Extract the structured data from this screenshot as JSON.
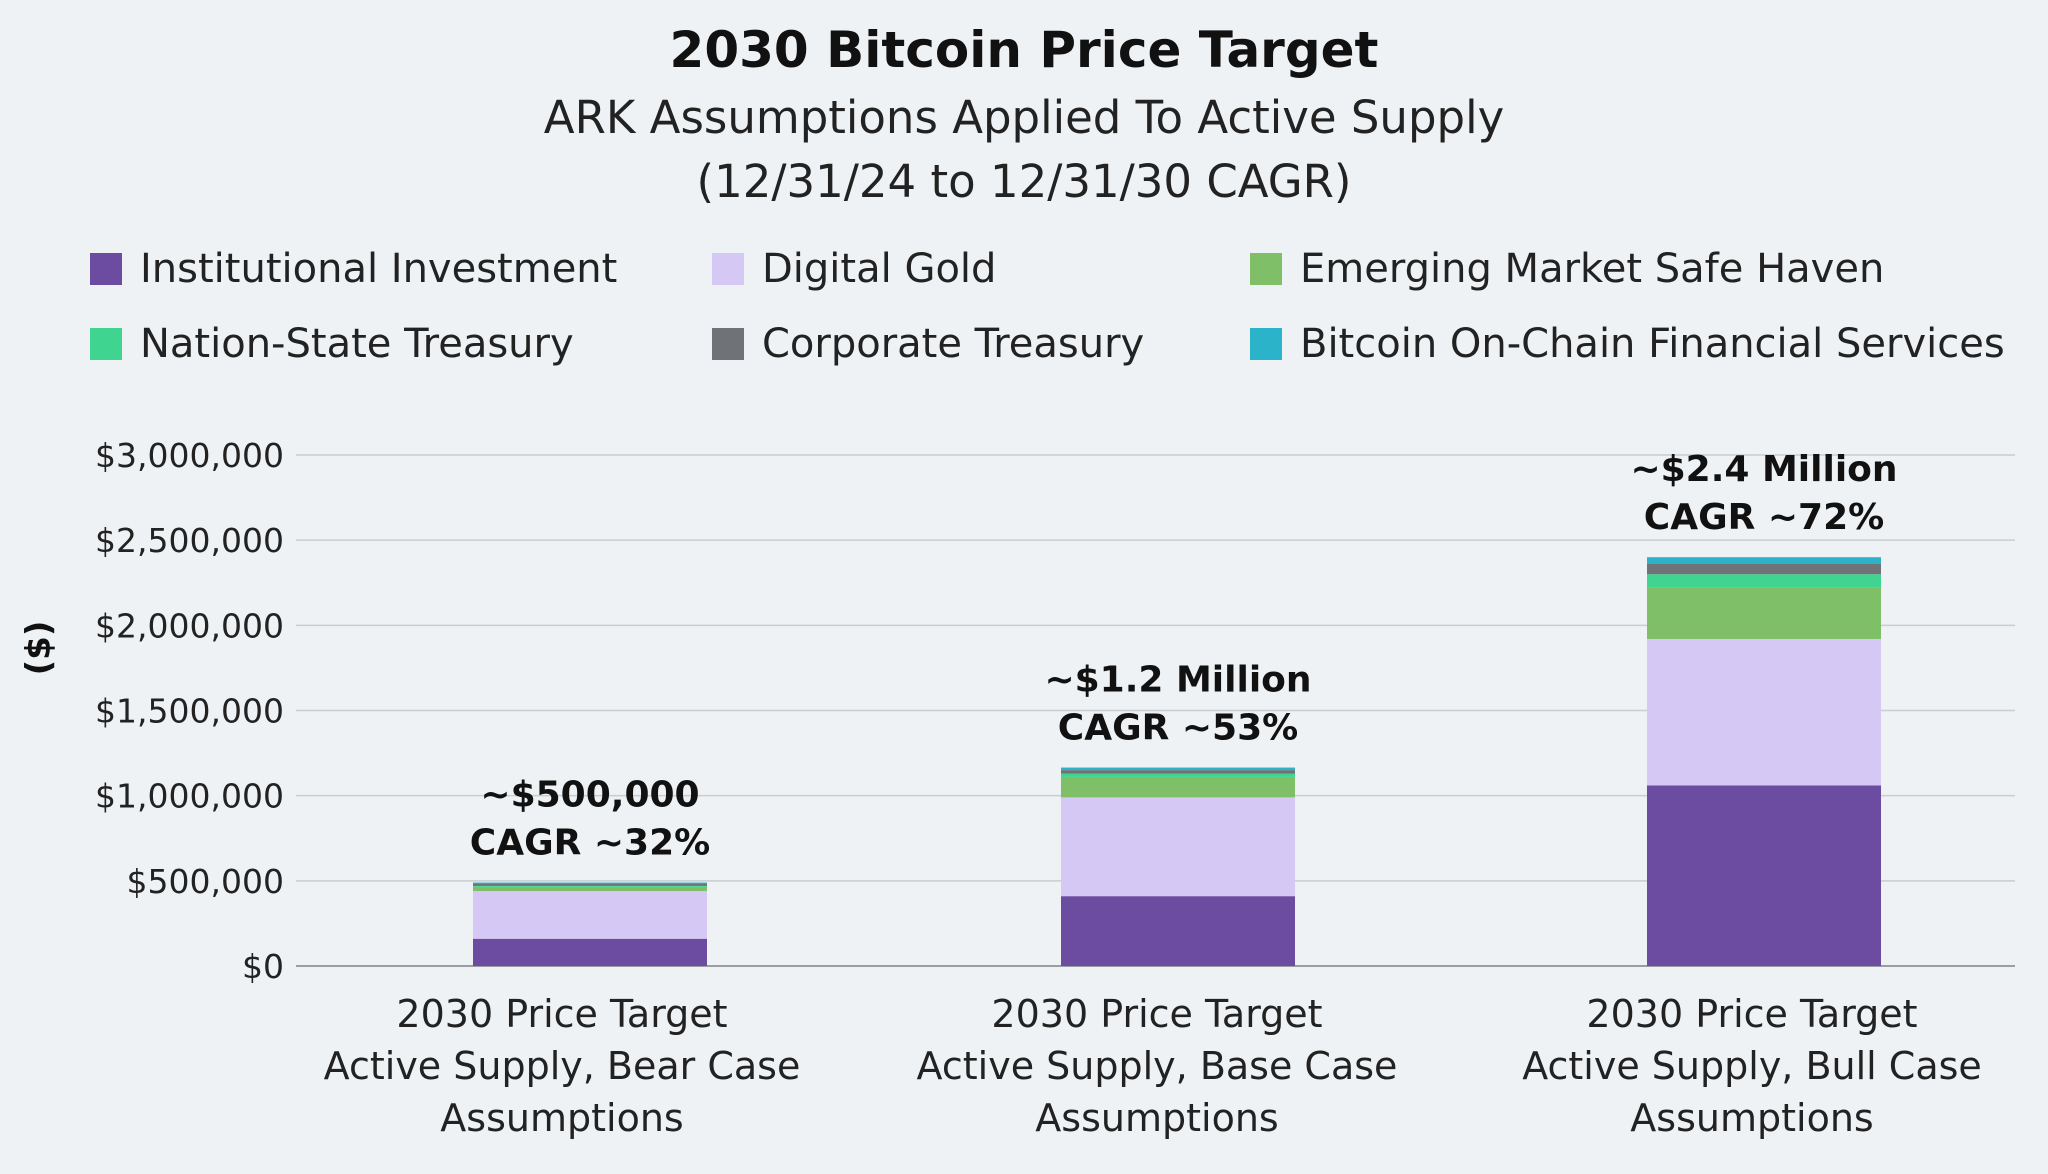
{
  "chart_data": {
    "type": "bar",
    "stacked": true,
    "title": "2030 Bitcoin Price Target",
    "subtitle_lines": [
      "ARK Assumptions Applied To Active Supply",
      "(12/31/24 to 12/31/30 CAGR)"
    ],
    "ylabel": "($)",
    "ylim": [
      0,
      3000000
    ],
    "yticks": [
      0,
      500000,
      1000000,
      1500000,
      2000000,
      2500000,
      3000000
    ],
    "ytick_labels": [
      "$0",
      "$500,000",
      "$1,000,000",
      "$1,500,000",
      "$2,000,000",
      "$2,500,000",
      "$3,000,000"
    ],
    "grid": true,
    "legend_position": "top",
    "categories": [
      [
        "2030 Price Target",
        "Active Supply, Bear Case",
        "Assumptions"
      ],
      [
        "2030 Price Target",
        "Active Supply, Base Case",
        "Assumptions"
      ],
      [
        "2030 Price Target",
        "Active Supply, Bull Case",
        "Assumptions"
      ]
    ],
    "series": [
      {
        "name": "Institutional Investment",
        "color": "#6b4ca0",
        "values": [
          160000,
          410000,
          1060000
        ]
      },
      {
        "name": "Digital Gold",
        "color": "#d6c8f5",
        "values": [
          280000,
          580000,
          860000
        ]
      },
      {
        "name": "Emerging Market Safe Haven",
        "color": "#7fbf67",
        "values": [
          25000,
          120000,
          300000
        ]
      },
      {
        "name": "Nation-State Treasury",
        "color": "#3fd48f",
        "values": [
          5000,
          20000,
          80000
        ]
      },
      {
        "name": "Corporate Treasury",
        "color": "#6f7378",
        "values": [
          15000,
          20000,
          60000
        ]
      },
      {
        "name": "Bitcoin On-Chain Financial Services",
        "color": "#2ab3c9",
        "values": [
          5000,
          15000,
          40000
        ]
      }
    ],
    "annotations": [
      [
        "~$500,000",
        "CAGR ~32%"
      ],
      [
        "~$1.2 Million",
        "CAGR ~53%"
      ],
      [
        "~$2.4 Million",
        "CAGR ~72%"
      ]
    ]
  }
}
